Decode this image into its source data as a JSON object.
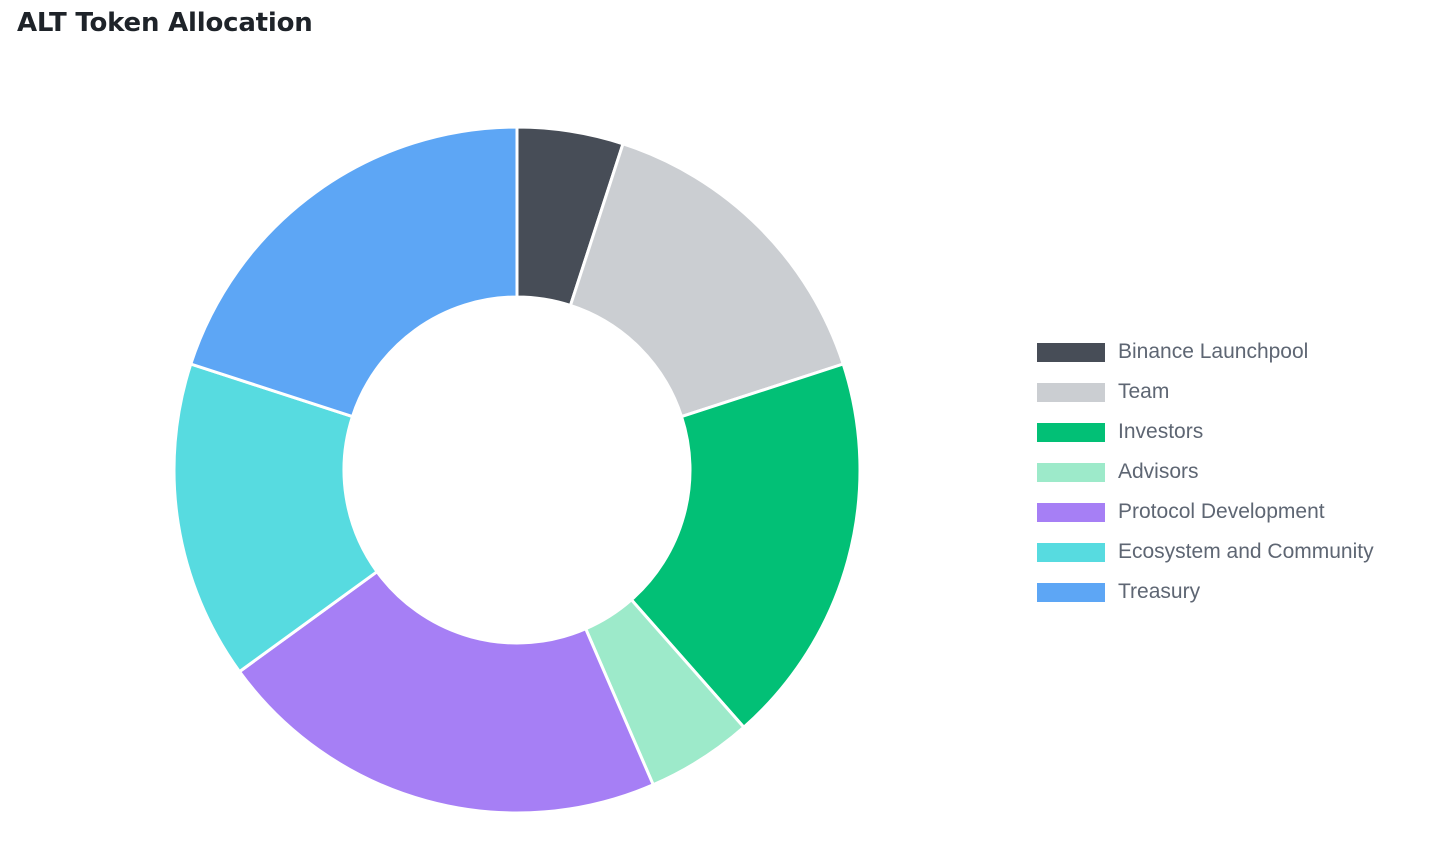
{
  "chart_data": {
    "type": "pie",
    "variant": "donut",
    "title": "ALT Token Allocation",
    "categories": [
      "Binance Launchpool",
      "Team",
      "Investors",
      "Advisors",
      "Protocol Development",
      "Ecosystem and Community",
      "Treasury"
    ],
    "values": [
      5,
      15,
      18.5,
      5,
      21.5,
      15,
      20
    ],
    "unit": "%",
    "colors": [
      "#474d57",
      "#cbced2",
      "#02c076",
      "#9deaca",
      "#a67ff5",
      "#57dbe0",
      "#5da6f5"
    ],
    "legend": "right",
    "start_angle": "top",
    "direction": "clockwise"
  }
}
